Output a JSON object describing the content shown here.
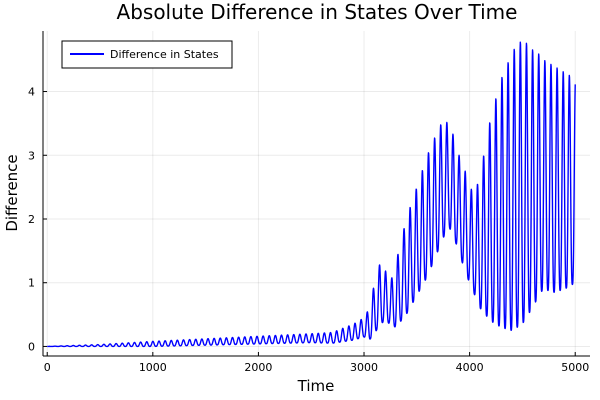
{
  "chart_data": {
    "type": "line",
    "title": "Absolute Difference in States Over Time",
    "xlabel": "Time",
    "ylabel": "Difference",
    "xlim": [
      -40,
      5140
    ],
    "ylim": [
      -0.15,
      4.95
    ],
    "xticks": [
      0,
      1000,
      2000,
      3000,
      4000,
      5000
    ],
    "yticks": [
      0,
      1,
      2,
      3,
      4
    ],
    "grid": true,
    "legend_position": "top-left",
    "series": [
      {
        "name": "Difference in States",
        "color": "#0000ff",
        "x_range": [
          0,
          5000
        ],
        "envelope": {
          "x": [
            0,
            500,
            1000,
            1500,
            2000,
            2500,
            2700,
            2900,
            3000,
            3050,
            3100,
            3150,
            3200,
            3250,
            3300,
            3400,
            3500,
            3600,
            3700,
            3750,
            3800,
            3850,
            3900,
            3950,
            4000,
            4050,
            4100,
            4200,
            4300,
            4400,
            4450,
            4500,
            4550,
            4600,
            4650,
            4700,
            4800,
            4900,
            5000
          ],
          "upper": [
            0.0,
            0.03,
            0.08,
            0.12,
            0.16,
            0.2,
            0.22,
            0.35,
            0.45,
            0.6,
            1.0,
            1.3,
            1.2,
            1.0,
            1.3,
            2.0,
            2.5,
            3.0,
            3.4,
            3.55,
            3.5,
            3.3,
            3.0,
            2.8,
            2.5,
            2.4,
            2.7,
            3.6,
            4.2,
            4.6,
            4.75,
            4.8,
            4.75,
            4.65,
            4.6,
            4.5,
            4.4,
            4.3,
            4.2
          ],
          "lower": [
            0.0,
            0.0,
            0.0,
            0.02,
            0.04,
            0.06,
            0.05,
            0.1,
            0.15,
            0.1,
            0.2,
            0.35,
            0.4,
            0.35,
            0.3,
            0.5,
            0.8,
            1.1,
            1.5,
            1.7,
            1.9,
            1.7,
            1.5,
            1.2,
            1.0,
            0.8,
            0.6,
            0.4,
            0.3,
            0.25,
            0.3,
            0.35,
            0.5,
            0.6,
            0.8,
            0.9,
            0.85,
            0.9,
            1.0
          ],
          "center": [
            0.0,
            0.015,
            0.04,
            0.07,
            0.1,
            0.13,
            0.14,
            0.22,
            0.3,
            0.35,
            0.6,
            0.8,
            0.8,
            0.7,
            0.8,
            1.25,
            1.65,
            2.05,
            2.2,
            2.25,
            2.3,
            2.1,
            1.9,
            1.7,
            1.6,
            1.6,
            1.65,
            2.0,
            2.3,
            2.7,
            2.9,
            3.05,
            3.1,
            3.0,
            2.9,
            2.7,
            2.6,
            2.6,
            2.6
          ]
        },
        "oscillation_period": 58
      }
    ]
  }
}
